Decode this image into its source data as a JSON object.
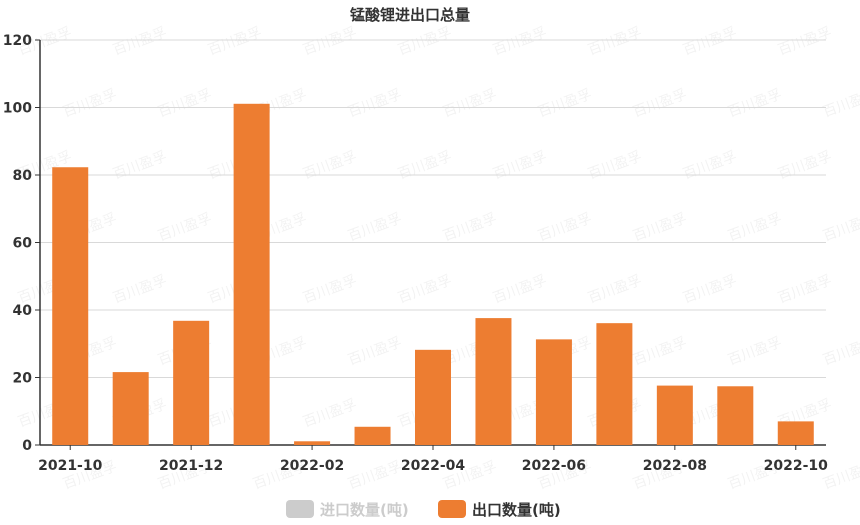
{
  "chart_data": {
    "type": "bar",
    "title": "锰酸锂进出口总量",
    "categories": [
      "2021-10",
      "2021-11",
      "2021-12",
      "2022-01",
      "2022-02",
      "2022-03",
      "2022-04",
      "2022-05",
      "2022-06",
      "2022-07",
      "2022-08",
      "2022-09",
      "2022-10"
    ],
    "x_tick_labels": [
      "2021-10",
      "2021-12",
      "2022-02",
      "2022-04",
      "2022-06",
      "2022-08",
      "2022-10"
    ],
    "y_ticks": [
      0,
      20,
      40,
      60,
      80,
      100,
      120
    ],
    "ylim": [
      0,
      120
    ],
    "grid": true,
    "legend_position": "bottom",
    "series": [
      {
        "name": "进口数量(吨)",
        "color": "#cccccc",
        "visible": false,
        "values": [
          0,
          0,
          0,
          0,
          0,
          0,
          0,
          0,
          0,
          0,
          0,
          0,
          0
        ]
      },
      {
        "name": "出口数量(吨)",
        "color": "#ed7d31",
        "visible": true,
        "values": [
          82.3,
          21.6,
          36.8,
          101.1,
          1.1,
          5.4,
          28.2,
          37.6,
          31.3,
          36.1,
          17.6,
          17.4,
          7.0
        ]
      }
    ]
  },
  "watermark": "百川盈孚"
}
